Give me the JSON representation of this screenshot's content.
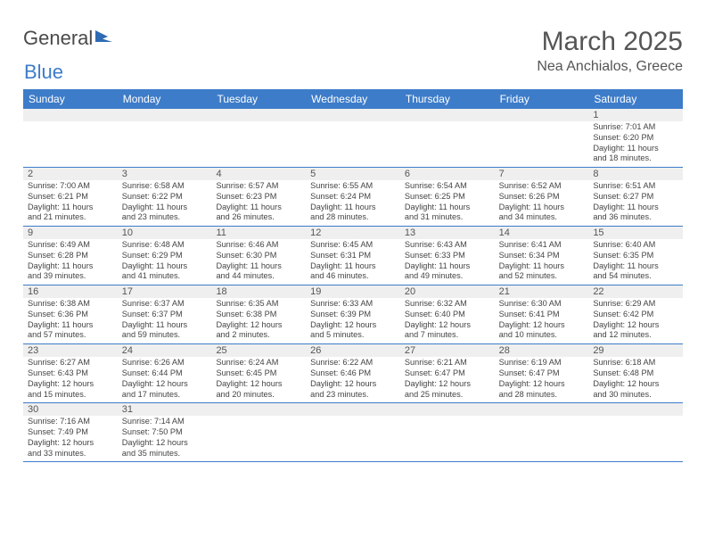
{
  "logo": {
    "text1": "General",
    "text2": "Blue",
    "icon_color": "#2e6bb3"
  },
  "title": "March 2025",
  "location": "Nea Anchialos, Greece",
  "colors": {
    "header_bg": "#3d7cc9",
    "header_text": "#ffffff",
    "daynum_bg": "#efefef",
    "border": "#3d7cc9",
    "text": "#444444",
    "title_text": "#555555"
  },
  "fonts": {
    "title_size": 30,
    "location_size": 16,
    "dayheader_size": 12,
    "daynum_size": 11,
    "detail_size": 9.2
  },
  "day_headers": [
    "Sunday",
    "Monday",
    "Tuesday",
    "Wednesday",
    "Thursday",
    "Friday",
    "Saturday"
  ],
  "weeks": [
    [
      null,
      null,
      null,
      null,
      null,
      null,
      {
        "n": "1",
        "sunrise": "7:01 AM",
        "sunset": "6:20 PM",
        "day_h": "11",
        "day_m": "18"
      }
    ],
    [
      {
        "n": "2",
        "sunrise": "7:00 AM",
        "sunset": "6:21 PM",
        "day_h": "11",
        "day_m": "21"
      },
      {
        "n": "3",
        "sunrise": "6:58 AM",
        "sunset": "6:22 PM",
        "day_h": "11",
        "day_m": "23"
      },
      {
        "n": "4",
        "sunrise": "6:57 AM",
        "sunset": "6:23 PM",
        "day_h": "11",
        "day_m": "26"
      },
      {
        "n": "5",
        "sunrise": "6:55 AM",
        "sunset": "6:24 PM",
        "day_h": "11",
        "day_m": "28"
      },
      {
        "n": "6",
        "sunrise": "6:54 AM",
        "sunset": "6:25 PM",
        "day_h": "11",
        "day_m": "31"
      },
      {
        "n": "7",
        "sunrise": "6:52 AM",
        "sunset": "6:26 PM",
        "day_h": "11",
        "day_m": "34"
      },
      {
        "n": "8",
        "sunrise": "6:51 AM",
        "sunset": "6:27 PM",
        "day_h": "11",
        "day_m": "36"
      }
    ],
    [
      {
        "n": "9",
        "sunrise": "6:49 AM",
        "sunset": "6:28 PM",
        "day_h": "11",
        "day_m": "39"
      },
      {
        "n": "10",
        "sunrise": "6:48 AM",
        "sunset": "6:29 PM",
        "day_h": "11",
        "day_m": "41"
      },
      {
        "n": "11",
        "sunrise": "6:46 AM",
        "sunset": "6:30 PM",
        "day_h": "11",
        "day_m": "44"
      },
      {
        "n": "12",
        "sunrise": "6:45 AM",
        "sunset": "6:31 PM",
        "day_h": "11",
        "day_m": "46"
      },
      {
        "n": "13",
        "sunrise": "6:43 AM",
        "sunset": "6:33 PM",
        "day_h": "11",
        "day_m": "49"
      },
      {
        "n": "14",
        "sunrise": "6:41 AM",
        "sunset": "6:34 PM",
        "day_h": "11",
        "day_m": "52"
      },
      {
        "n": "15",
        "sunrise": "6:40 AM",
        "sunset": "6:35 PM",
        "day_h": "11",
        "day_m": "54"
      }
    ],
    [
      {
        "n": "16",
        "sunrise": "6:38 AM",
        "sunset": "6:36 PM",
        "day_h": "11",
        "day_m": "57"
      },
      {
        "n": "17",
        "sunrise": "6:37 AM",
        "sunset": "6:37 PM",
        "day_h": "11",
        "day_m": "59"
      },
      {
        "n": "18",
        "sunrise": "6:35 AM",
        "sunset": "6:38 PM",
        "day_h": "12",
        "day_m": "2"
      },
      {
        "n": "19",
        "sunrise": "6:33 AM",
        "sunset": "6:39 PM",
        "day_h": "12",
        "day_m": "5"
      },
      {
        "n": "20",
        "sunrise": "6:32 AM",
        "sunset": "6:40 PM",
        "day_h": "12",
        "day_m": "7"
      },
      {
        "n": "21",
        "sunrise": "6:30 AM",
        "sunset": "6:41 PM",
        "day_h": "12",
        "day_m": "10"
      },
      {
        "n": "22",
        "sunrise": "6:29 AM",
        "sunset": "6:42 PM",
        "day_h": "12",
        "day_m": "12"
      }
    ],
    [
      {
        "n": "23",
        "sunrise": "6:27 AM",
        "sunset": "6:43 PM",
        "day_h": "12",
        "day_m": "15"
      },
      {
        "n": "24",
        "sunrise": "6:26 AM",
        "sunset": "6:44 PM",
        "day_h": "12",
        "day_m": "17"
      },
      {
        "n": "25",
        "sunrise": "6:24 AM",
        "sunset": "6:45 PM",
        "day_h": "12",
        "day_m": "20"
      },
      {
        "n": "26",
        "sunrise": "6:22 AM",
        "sunset": "6:46 PM",
        "day_h": "12",
        "day_m": "23"
      },
      {
        "n": "27",
        "sunrise": "6:21 AM",
        "sunset": "6:47 PM",
        "day_h": "12",
        "day_m": "25"
      },
      {
        "n": "28",
        "sunrise": "6:19 AM",
        "sunset": "6:47 PM",
        "day_h": "12",
        "day_m": "28"
      },
      {
        "n": "29",
        "sunrise": "6:18 AM",
        "sunset": "6:48 PM",
        "day_h": "12",
        "day_m": "30"
      }
    ],
    [
      {
        "n": "30",
        "sunrise": "7:16 AM",
        "sunset": "7:49 PM",
        "day_h": "12",
        "day_m": "33"
      },
      {
        "n": "31",
        "sunrise": "7:14 AM",
        "sunset": "7:50 PM",
        "day_h": "12",
        "day_m": "35"
      },
      null,
      null,
      null,
      null,
      null
    ]
  ],
  "labels": {
    "sunrise": "Sunrise:",
    "sunset": "Sunset:",
    "daylight_pre": "Daylight:",
    "hours_word": "hours",
    "and_word": "and",
    "minutes_word": "minutes."
  }
}
